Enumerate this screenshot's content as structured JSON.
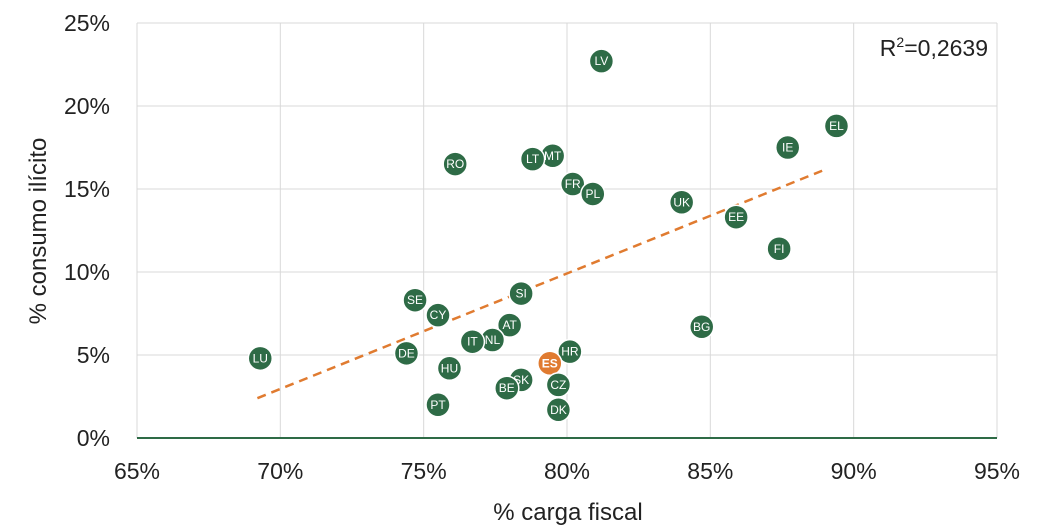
{
  "chart_data": {
    "type": "scatter",
    "xlabel": "% carga fiscal",
    "ylabel": "% consumo ilícito",
    "xlim": [
      0.65,
      0.95
    ],
    "ylim": [
      0,
      0.25
    ],
    "x_ticks": [
      0.65,
      0.7,
      0.75,
      0.8,
      0.85,
      0.9,
      0.95
    ],
    "x_tick_labels": [
      "65%",
      "70%",
      "75%",
      "80%",
      "85%",
      "90%",
      "95%"
    ],
    "y_ticks": [
      0,
      0.05,
      0.1,
      0.15,
      0.2,
      0.25
    ],
    "y_tick_labels": [
      "0%",
      "5%",
      "10%",
      "15%",
      "20%",
      "25%"
    ],
    "grid": true,
    "annotation": {
      "prefix": "R",
      "superscript": "2",
      "suffix": "=0,2639"
    },
    "trendline": {
      "style": "dashed",
      "x": [
        0.692,
        0.889
      ],
      "y": [
        0.024,
        0.161
      ]
    },
    "colors": {
      "point": "#2e6b46",
      "highlight": "#e07b30",
      "trendline": "#e07b30",
      "x_axis_line": "#2e6b46",
      "grid": "#d9d9d9"
    },
    "points": [
      {
        "label": "LV",
        "x": 0.812,
        "y": 0.227
      },
      {
        "label": "EL",
        "x": 0.894,
        "y": 0.188
      },
      {
        "label": "IE",
        "x": 0.877,
        "y": 0.175
      },
      {
        "label": "MT",
        "x": 0.795,
        "y": 0.17
      },
      {
        "label": "LT",
        "x": 0.788,
        "y": 0.168
      },
      {
        "label": "RO",
        "x": 0.761,
        "y": 0.165
      },
      {
        "label": "FR",
        "x": 0.802,
        "y": 0.153
      },
      {
        "label": "PL",
        "x": 0.809,
        "y": 0.147
      },
      {
        "label": "UK",
        "x": 0.84,
        "y": 0.142
      },
      {
        "label": "EE",
        "x": 0.859,
        "y": 0.133
      },
      {
        "label": "FI",
        "x": 0.874,
        "y": 0.114
      },
      {
        "label": "SI",
        "x": 0.784,
        "y": 0.087
      },
      {
        "label": "SE",
        "x": 0.747,
        "y": 0.083
      },
      {
        "label": "CY",
        "x": 0.755,
        "y": 0.074
      },
      {
        "label": "AT",
        "x": 0.78,
        "y": 0.068
      },
      {
        "label": "BG",
        "x": 0.847,
        "y": 0.067
      },
      {
        "label": "NL",
        "x": 0.774,
        "y": 0.059
      },
      {
        "label": "IT",
        "x": 0.767,
        "y": 0.058
      },
      {
        "label": "HR",
        "x": 0.801,
        "y": 0.052
      },
      {
        "label": "DE",
        "x": 0.744,
        "y": 0.051
      },
      {
        "label": "LU",
        "x": 0.693,
        "y": 0.048
      },
      {
        "label": "ES",
        "x": 0.794,
        "y": 0.045,
        "highlight": true
      },
      {
        "label": "HU",
        "x": 0.759,
        "y": 0.042
      },
      {
        "label": "SK",
        "x": 0.784,
        "y": 0.035
      },
      {
        "label": "CZ",
        "x": 0.797,
        "y": 0.032
      },
      {
        "label": "BE",
        "x": 0.779,
        "y": 0.03
      },
      {
        "label": "PT",
        "x": 0.755,
        "y": 0.02
      },
      {
        "label": "DK",
        "x": 0.797,
        "y": 0.017
      }
    ]
  }
}
